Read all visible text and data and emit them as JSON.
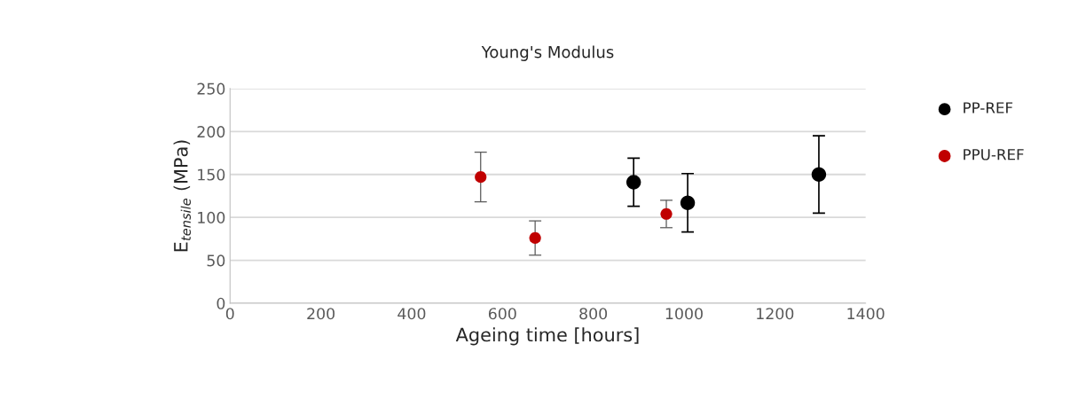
{
  "chart_data": {
    "type": "scatter",
    "title": "Young's Modulus",
    "xlabel": "Ageing time [hours]",
    "ylabel": "E$_{tensile}$ (MPa)",
    "series": [
      {
        "name": "PP-REF",
        "color": "#000000",
        "x": [
          889,
          1008,
          1297
        ],
        "values": [
          141,
          117,
          150
        ],
        "errors": [
          28,
          34,
          45
        ]
      },
      {
        "name": "PPU-REF",
        "color": "#c00000",
        "x": [
          552,
          672,
          961
        ],
        "values": [
          147,
          76,
          104
        ],
        "errors": [
          29,
          20,
          16
        ]
      }
    ],
    "xlim": [
      0,
      1400
    ],
    "xticks": [
      0,
      200,
      400,
      600,
      800,
      1000,
      1200,
      1400
    ],
    "ylim": [
      0,
      250
    ],
    "yticks": [
      0,
      50,
      100,
      150,
      200,
      250
    ],
    "grid": "y",
    "legend": "right",
    "marker": "circle"
  }
}
